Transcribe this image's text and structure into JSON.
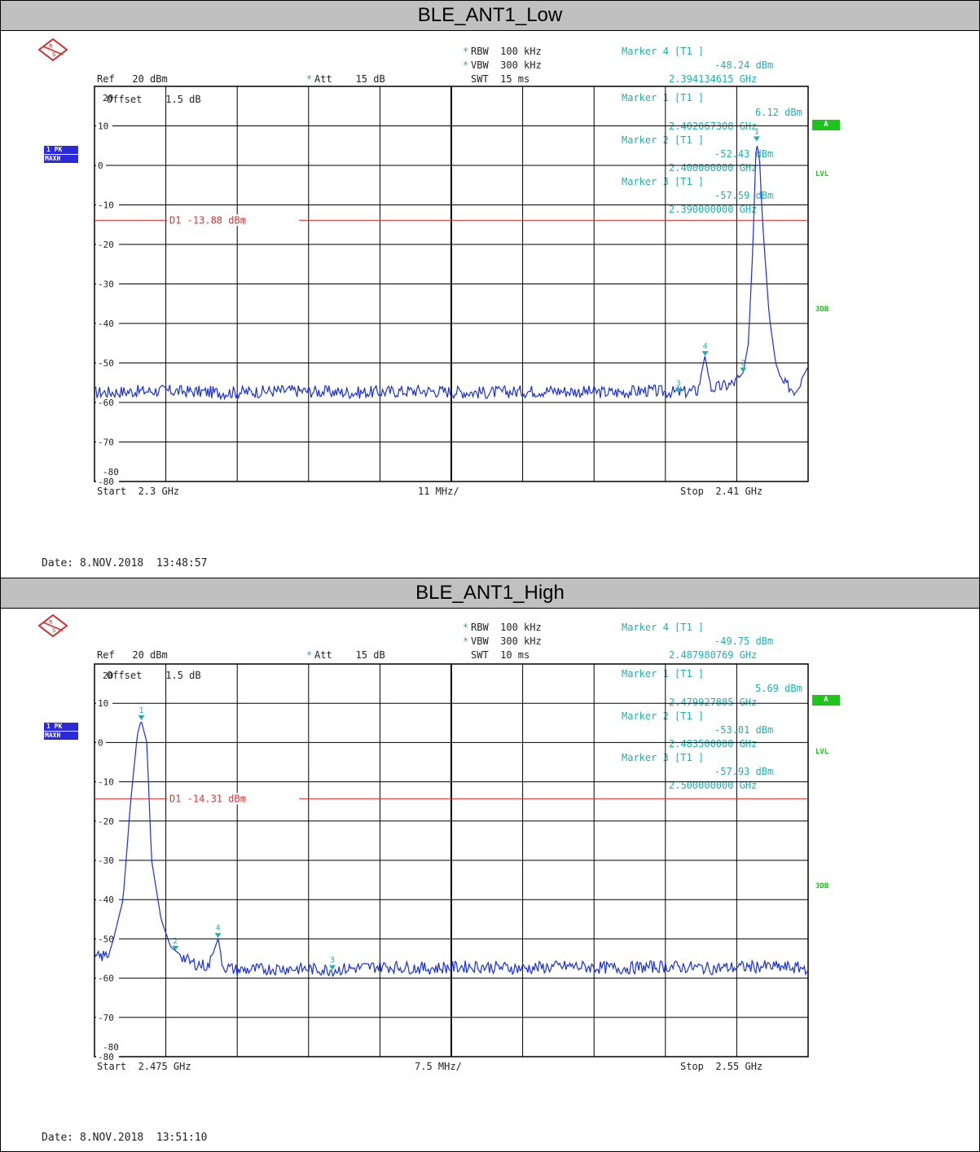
{
  "panels": [
    {
      "title": "BLE_ANT1_Low",
      "rbw": "RBW  100 kHz",
      "vbw": "VBW  300 kHz",
      "swt": "SWT  15 ms",
      "ref": "Ref   20 dBm",
      "att": "Att    15 dB",
      "offset": "Offset    1.5 dB",
      "trace_mode": "1 PK",
      "trace_det": "MAXH",
      "side_a": "A",
      "side_lvl": "LVL",
      "side_3db": "3DB",
      "start": "Start  2.3 GHz",
      "span_div": "11 MHz/",
      "stop": "Stop  2.41 GHz",
      "date": "Date: 8.NOV.2018  13:48:57",
      "marker_box": [
        {
          "label": "Marker 4 [T1 ]",
          "value": "-48.24 dBm",
          "freq": "2.394134615 GHz"
        },
        {
          "label": "Marker 1 [T1 ]",
          "value": "6.12 dBm",
          "freq": "2.402067308 GHz"
        },
        {
          "label": "Marker 2 [T1 ]",
          "value": "-52.43 dBm",
          "freq": "2.400000000 GHz"
        },
        {
          "label": "Marker 3 [T1 ]",
          "value": "-57.59 dBm",
          "freq": "2.390000000 GHz"
        }
      ],
      "display_line": "D1  -13.88 dBm"
    },
    {
      "title": "BLE_ANT1_High",
      "rbw": "RBW  100 kHz",
      "vbw": "VBW  300 kHz",
      "swt": "SWT  10 ms",
      "ref": "Ref   20 dBm",
      "att": "Att    15 dB",
      "offset": "Offset    1.5 dB",
      "trace_mode": "1 PK",
      "trace_det": "MAXH",
      "side_a": "A",
      "side_lvl": "LVL",
      "side_3db": "3DB",
      "start": "Start  2.475 GHz",
      "span_div": "7.5 MHz/",
      "stop": "Stop  2.55 GHz",
      "date": "Date: 8.NOV.2018  13:51:10",
      "marker_box": [
        {
          "label": "Marker 4 [T1 ]",
          "value": "-49.75 dBm",
          "freq": "2.487980769 GHz"
        },
        {
          "label": "Marker 1 [T1 ]",
          "value": "5.69 dBm",
          "freq": "2.479927885 GHz"
        },
        {
          "label": "Marker 2 [T1 ]",
          "value": "-53.01 dBm",
          "freq": "2.483500000 GHz"
        },
        {
          "label": "Marker 3 [T1 ]",
          "value": "-57.93 dBm",
          "freq": "2.500000000 GHz"
        }
      ],
      "display_line": "D1  -14.31 dBm"
    }
  ],
  "colors": {
    "trace": "#1a2fd6",
    "marker": "#20b0b0",
    "display_line": "#e03030",
    "grid": "#000000",
    "title_bg": "#c0c0c0",
    "badge_green": "#1cc41c",
    "badge_blue": "#2a2ad8"
  },
  "chart_data": [
    {
      "type": "line",
      "title": "BLE_ANT1_Low",
      "xlabel": "",
      "ylabel": "",
      "xlim": [
        2.3,
        2.41
      ],
      "ylim": [
        -80,
        20
      ],
      "ytick_labels": [
        "20",
        "10",
        "0",
        "-10",
        "-20",
        "-30",
        "-40",
        "-50",
        "-60",
        "-70",
        "-80"
      ],
      "display_line": -13.88,
      "series": [
        {
          "x": [
            2.3,
            2.31,
            2.32,
            2.33,
            2.34,
            2.35,
            2.36,
            2.37,
            2.38,
            2.385,
            2.39,
            2.393,
            2.3941,
            2.395,
            2.398,
            2.399,
            2.4,
            2.4008,
            2.4015,
            2.402,
            2.4025,
            2.403,
            2.404,
            2.405,
            2.406,
            2.407,
            2.408,
            2.41
          ],
          "y": [
            -57.5,
            -57,
            -57.5,
            -57,
            -57.5,
            -57,
            -57.5,
            -57,
            -57.5,
            -57,
            -57.5,
            -57,
            -48.2,
            -56.5,
            -55.5,
            -54.5,
            -52.4,
            -45,
            -20,
            6.1,
            2,
            -15,
            -38,
            -50,
            -55,
            -56,
            -57,
            -51
          ]
        }
      ],
      "markers": [
        {
          "id": 1,
          "x": 2.402067308,
          "y": 6.12
        },
        {
          "id": 2,
          "x": 2.4,
          "y": -52.43
        },
        {
          "id": 3,
          "x": 2.39,
          "y": -57.59
        },
        {
          "id": 4,
          "x": 2.394134615,
          "y": -48.24
        }
      ]
    },
    {
      "type": "line",
      "title": "BLE_ANT1_High",
      "xlabel": "",
      "ylabel": "",
      "xlim": [
        2.475,
        2.55
      ],
      "ylim": [
        -80,
        20
      ],
      "ytick_labels": [
        "20",
        "10",
        "0",
        "-10",
        "-20",
        "-30",
        "-40",
        "-50",
        "-60",
        "-70",
        "-80"
      ],
      "display_line": -14.31,
      "series": [
        {
          "x": [
            2.475,
            2.4765,
            2.477,
            2.478,
            2.4788,
            2.4795,
            2.4799,
            2.4805,
            2.481,
            2.482,
            2.483,
            2.4835,
            2.485,
            2.487,
            2.488,
            2.4885,
            2.49,
            2.495,
            2.5,
            2.505,
            2.51,
            2.515,
            2.52,
            2.525,
            2.53,
            2.535,
            2.54,
            2.545,
            2.55
          ],
          "y": [
            -55,
            -54,
            -50,
            -40,
            -15,
            2,
            5.7,
            0,
            -30,
            -45,
            -52,
            -53,
            -56,
            -57,
            -49.8,
            -57,
            -58,
            -57.5,
            -57.9,
            -57,
            -57.5,
            -57,
            -57.5,
            -57,
            -57.5,
            -57,
            -57.5,
            -57,
            -57.5
          ]
        }
      ],
      "markers": [
        {
          "id": 1,
          "x": 2.479927885,
          "y": 5.69
        },
        {
          "id": 2,
          "x": 2.4835,
          "y": -53.01
        },
        {
          "id": 3,
          "x": 2.5,
          "y": -57.93
        },
        {
          "id": 4,
          "x": 2.487980769,
          "y": -49.75
        }
      ]
    }
  ]
}
